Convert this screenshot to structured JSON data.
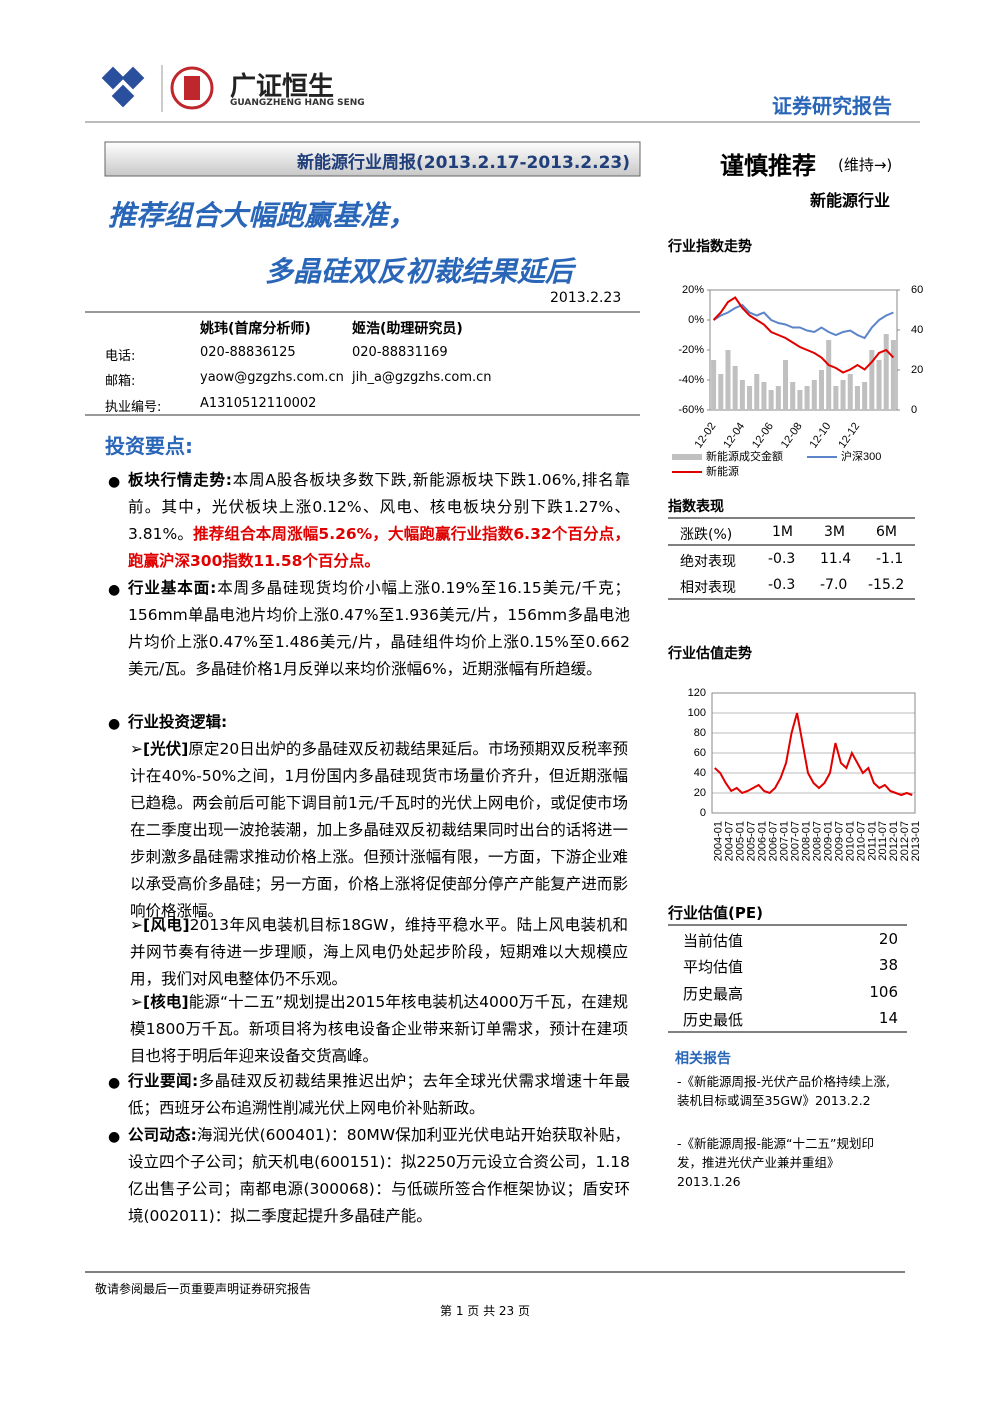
{
  "header": {
    "brand": "广证恒生",
    "brand_en": "GUANGZHENG HANG SENG",
    "report_type": "证券研究报告"
  },
  "banner": "新能源行业周报(2013.2.17-2013.2.23)",
  "rating": "谨慎推荐",
  "rating_note": "(维持→)",
  "industry": "新能源行业",
  "title": [
    "推荐组合大幅跑赢基准，",
    "多晶硅双反初裁结果延后"
  ],
  "date": "2013.2.23",
  "analysts": {
    "names": [
      "姚玮(首席分析师)",
      "姬浩(助理研究员)"
    ],
    "rows": [
      [
        "电话:",
        "020-88836125",
        "020-88831169"
      ],
      [
        "邮箱:",
        "yaow@gzgzhs.com.cn",
        "jih_a@gzgzhs.com.cn"
      ],
      [
        "执业编号:",
        "A1310512110002"
      ]
    ]
  },
  "section": "投资要点:",
  "bullets": [
    {
      "label": "板块行情走势:",
      "text": "本周A股各板块多数下跌,新能源板块下跌1.06%,排名靠前。其中，光伏板块上涨0.12%、风电、核电板块分别下跌1.27%、3.81%。",
      "highlight": "推荐组合本周涨幅5.26%，大幅跑赢行业指数6.32个百分点，跑赢沪深300指数11.58个百分点。"
    },
    {
      "label": "行业基本面:",
      "text": "本周多晶硅现货均价小幅上涨0.19%至16.15美元/千克；156mm单晶电池片均价上涨0.47%至1.936美元/片，156mm多晶电池片均价上涨0.47%至1.486美元/片，晶硅组件均价上涨0.15%至0.662美元/瓦。多晶硅价格1月反弹以来均价涨幅6%，近期涨幅有所趋缓。"
    },
    {
      "label": "行业投资逻辑:",
      "items": [
        {
          "tag": "[光伏]",
          "text": "原定20日出炉的多晶硅双反初裁结果延后。市场预期双反税率预计在40%-50%之间，1月份国内多晶硅现货市场量价齐升，但近期涨幅已趋稳。两会前后可能下调目前1元/千瓦时的光伏上网电价，或促使市场在二季度出现一波抢装潮，加上多晶硅双反初裁结果同时出台的话将进一步刺激多晶硅需求推动价格上涨。但预计涨幅有限，一方面，下游企业难以承受高价多晶硅；另一方面，价格上涨将促使部分停产产能复产进而影响价格涨幅。"
        },
        {
          "tag": "[风电]",
          "text": "2013年风电装机目标18GW，维持平稳水平。陆上风电装机和并网节奏有待进一步理顺，海上风电仍处起步阶段，短期难以大规模应用，我们对风电整体仍不乐观。"
        },
        {
          "tag": "[核电]",
          "text": "能源“十二五”规划提出2015年核电装机达4000万千瓦，在建规模1800万千瓦。新项目将为核电设备企业带来新订单需求，预计在建项目也将于明后年迎来设备交货高峰。"
        }
      ]
    },
    {
      "label": "行业要闻:",
      "text": "多晶硅双反初裁结果推迟出炉；去年全球光伏需求增速十年最低；西班牙公布追溯性削减光伏上网电价补贴新政。"
    },
    {
      "label": "公司动态:",
      "text": "海润光伏(600401)：80MW保加利亚光伏电站开始获取补贴，设立四个子公司；航天机电(600151)：拟2250万元设立合资公司，1.18亿出售子公司；南都电源(300068)：与低碳所签合作框架协议；盾安环境(002011)：拟二季度起提升多晶硅产能。"
    }
  ],
  "chart_data": [
    {
      "type": "line",
      "title": "行业指数走势",
      "categories": [
        "12-02",
        null,
        null,
        null,
        "12-04",
        null,
        null,
        null,
        "12-06",
        null,
        null,
        null,
        "12-08",
        null,
        null,
        null,
        "12-10",
        null,
        null,
        null,
        "12-12",
        null,
        null,
        null,
        null,
        null
      ],
      "series": [
        {
          "name": "新能源成交金额",
          "type": "bar",
          "axis": "y2",
          "color": "#c0c0c0",
          "values": [
            25,
            18,
            30,
            22,
            15,
            12,
            18,
            14,
            10,
            12,
            25,
            14,
            10,
            12,
            15,
            20,
            35,
            12,
            15,
            18,
            12,
            14,
            30,
            25,
            38,
            35
          ]
        },
        {
          "name": "沪深300",
          "color": "#5b85c8",
          "values": [
            0,
            3,
            5,
            8,
            10,
            5,
            3,
            5,
            0,
            -2,
            -3,
            -5,
            -5,
            -7,
            -8,
            -5,
            -8,
            -10,
            -8,
            -7,
            -10,
            -12,
            -5,
            0,
            3,
            5
          ]
        },
        {
          "name": "新能源",
          "color": "#e00000",
          "values": [
            0,
            5,
            12,
            15,
            8,
            3,
            0,
            -3,
            -8,
            -10,
            -12,
            -15,
            -18,
            -20,
            -22,
            -25,
            -30,
            -32,
            -35,
            -33,
            -30,
            -33,
            -28,
            -22,
            -20,
            -25
          ]
        }
      ],
      "ylim": [
        -60,
        20
      ],
      "yticks": [
        {
          "value": 20,
          "label": "20%"
        },
        {
          "value": 0,
          "label": "0%"
        },
        {
          "value": -20,
          "label": "-20%"
        },
        {
          "value": -40,
          "label": "-40%"
        },
        {
          "value": -60,
          "label": "-60%"
        }
      ],
      "y2lim": [
        0,
        60
      ],
      "y2ticks": [
        60,
        40,
        20,
        0
      ]
    },
    {
      "type": "line",
      "title": "行业估值走势",
      "categories": [
        "2004-01",
        null,
        "2004-07",
        null,
        "2005-01",
        null,
        "2005-07",
        null,
        "2006-01",
        null,
        "2006-07",
        null,
        "2007-01",
        null,
        "2007-07",
        null,
        "2008-01",
        null,
        "2008-07",
        null,
        "2009-01",
        null,
        "2009-07",
        null,
        "2010-01",
        null,
        "2010-07",
        null,
        "2011-01",
        null,
        "2011-07",
        null,
        "2012-01",
        null,
        "2012-07",
        null,
        "2013-01"
      ],
      "series": [
        {
          "color": "#e00000",
          "values": [
            45,
            40,
            30,
            22,
            25,
            20,
            22,
            25,
            28,
            22,
            20,
            25,
            35,
            50,
            80,
            100,
            70,
            40,
            30,
            25,
            30,
            40,
            70,
            50,
            45,
            60,
            50,
            40,
            45,
            30,
            25,
            28,
            22,
            20,
            18,
            20,
            18
          ]
        }
      ],
      "ylim": [
        0,
        120
      ],
      "yticks": [
        0,
        20,
        40,
        60,
        80,
        100,
        120
      ],
      "grid": true
    }
  ],
  "index_table": {
    "title": "指数表现",
    "header": [
      "涨跌(%)",
      "1M",
      "3M",
      "6M"
    ],
    "rows": [
      [
        "绝对表现",
        "-0.3",
        "11.4",
        "-1.1"
      ],
      [
        "相对表现",
        "-0.3",
        "-7.0",
        "-15.2"
      ]
    ]
  },
  "pe_table": {
    "title": "行业估值(PE)",
    "rows": [
      [
        "当前估值",
        "20"
      ],
      [
        "平均估值",
        "38"
      ],
      [
        "历史最高",
        "106"
      ],
      [
        "历史最低",
        "14"
      ]
    ]
  },
  "related": {
    "title": "相关报告",
    "items": [
      "-《新能源周报-光伏产品价格持续上涨,装机目标或调至35GW》2013.2.2",
      "-《新能源周报-能源“十二五”规划印发，推进光伏产业兼并重组》2013.1.26"
    ]
  },
  "footer": {
    "note": "敬请参阅最后一页重要声明证券研究报告",
    "page": "第 1 页 共 23 页"
  }
}
